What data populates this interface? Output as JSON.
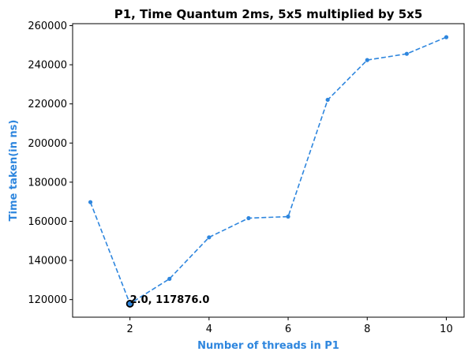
{
  "chart_data": {
    "type": "line",
    "title": "P1, Time Quantum 2ms, 5x5 multiplied by 5x5",
    "xlabel": "Number of threads in P1",
    "ylabel": "Time taken(in ns)",
    "x": [
      1,
      2,
      3,
      4,
      5,
      6,
      7,
      8,
      9,
      10
    ],
    "series": [
      {
        "values": [
          169800,
          117876,
          130600,
          151800,
          161600,
          162400,
          222100,
          242400,
          245600,
          254100
        ]
      }
    ],
    "xlim": [
      0.55,
      10.45
    ],
    "ylim": [
      111000,
      261000
    ],
    "xticks": [
      "2",
      "4",
      "6",
      "8",
      "10"
    ],
    "yticks": [
      "120000",
      "140000",
      "160000",
      "180000",
      "200000",
      "220000",
      "240000",
      "260000"
    ],
    "annotation": {
      "text": "2.0, 117876.0",
      "x": 2,
      "y": 117876
    },
    "line_style": "dashed",
    "marker": "circle",
    "grid": false,
    "colors": {
      "line": "#2e86de",
      "axis_label": "#2e86de",
      "highlight_edge": "#000000"
    }
  }
}
